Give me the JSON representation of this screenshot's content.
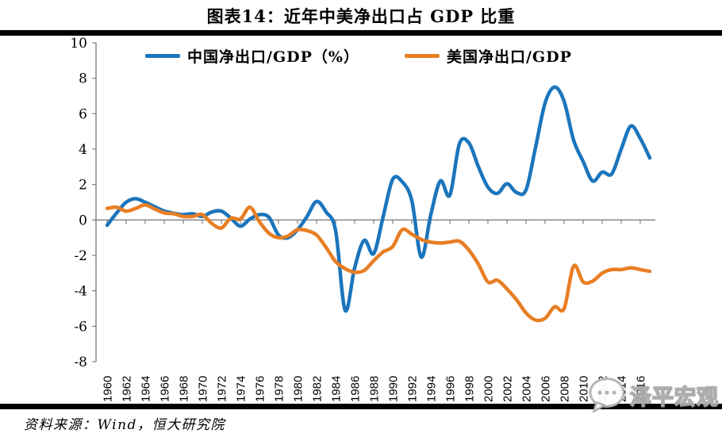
{
  "title": "图表14：近年中美净出口占 GDP 比重",
  "source": "资料来源：Wind，恒大研究院",
  "watermark": "泽平宏观",
  "chart_data": {
    "type": "line",
    "title": "图表14：近年中美净出口占 GDP 比重",
    "xlabel": "",
    "ylabel": "",
    "ylim": [
      -8,
      10
    ],
    "ytick_step": 2,
    "ytick_labels": [
      "10",
      "8",
      "6",
      "4",
      "2",
      "0",
      "-2",
      "-4",
      "-6",
      "-8"
    ],
    "xtick_labels": [
      "1960",
      "1962",
      "1964",
      "1966",
      "1968",
      "1970",
      "1972",
      "1974",
      "1976",
      "1978",
      "1980",
      "1982",
      "1984",
      "1986",
      "1988",
      "1990",
      "1992",
      "1994",
      "1996",
      "1998",
      "2000",
      "2002",
      "2004",
      "2006",
      "2008",
      "2010",
      "2012",
      "2014",
      "2016"
    ],
    "grid": false,
    "legend_position": "top",
    "axis_color": "#808080",
    "x": [
      1960,
      1961,
      1962,
      1963,
      1964,
      1965,
      1966,
      1967,
      1968,
      1969,
      1970,
      1971,
      1972,
      1973,
      1974,
      1975,
      1976,
      1977,
      1978,
      1979,
      1980,
      1981,
      1982,
      1983,
      1984,
      1985,
      1986,
      1987,
      1988,
      1989,
      1990,
      1991,
      1992,
      1993,
      1994,
      1995,
      1996,
      1997,
      1998,
      1999,
      2000,
      2001,
      2002,
      2003,
      2004,
      2005,
      2006,
      2007,
      2008,
      2009,
      2010,
      2011,
      2012,
      2013,
      2014,
      2015,
      2016,
      2017
    ],
    "series": [
      {
        "name": "中国净出口/GDP（%）",
        "color": "#1B75BC",
        "values": [
          -0.3,
          0.4,
          1.0,
          1.2,
          1.0,
          0.75,
          0.5,
          0.38,
          0.3,
          0.35,
          0.2,
          0.45,
          0.5,
          0.1,
          -0.35,
          0.05,
          0.3,
          0.15,
          -0.85,
          -1.0,
          -0.55,
          0.2,
          1.05,
          0.45,
          -0.6,
          -5.1,
          -2.7,
          -1.15,
          -1.9,
          0.2,
          2.3,
          2.15,
          1.1,
          -2.1,
          0.3,
          2.2,
          1.4,
          4.3,
          4.35,
          3.0,
          1.85,
          1.5,
          2.05,
          1.55,
          1.7,
          4.1,
          6.6,
          7.5,
          6.7,
          4.5,
          3.3,
          2.2,
          2.7,
          2.6,
          4.0,
          5.3,
          4.6,
          3.5
        ]
      },
      {
        "name": "美国净出口/GDP",
        "color": "#E87E24",
        "values": [
          0.65,
          0.72,
          0.5,
          0.65,
          0.85,
          0.62,
          0.4,
          0.35,
          0.2,
          0.2,
          0.3,
          -0.2,
          -0.45,
          0.1,
          0.05,
          0.72,
          -0.1,
          -0.75,
          -1.0,
          -0.9,
          -0.55,
          -0.6,
          -0.85,
          -1.55,
          -2.35,
          -2.75,
          -2.95,
          -2.85,
          -2.3,
          -1.8,
          -1.5,
          -0.55,
          -0.8,
          -1.1,
          -1.25,
          -1.3,
          -1.25,
          -1.2,
          -1.7,
          -2.5,
          -3.5,
          -3.4,
          -3.9,
          -4.5,
          -5.25,
          -5.65,
          -5.55,
          -4.9,
          -5.0,
          -2.6,
          -3.5,
          -3.45,
          -3.0,
          -2.8,
          -2.8,
          -2.7,
          -2.8,
          -2.9
        ]
      }
    ]
  }
}
